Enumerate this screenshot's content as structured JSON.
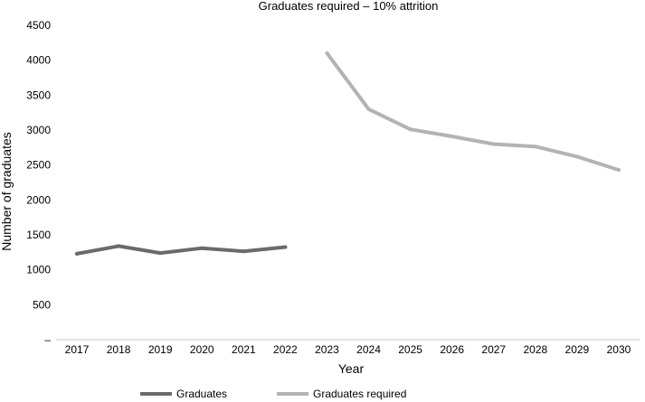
{
  "chart_data": {
    "type": "line",
    "title": "Graduates required – 10% attrition",
    "xlabel": "Year",
    "ylabel": "Number of graduates",
    "categories": [
      "2017",
      "2018",
      "2019",
      "2020",
      "2021",
      "2022",
      "2023",
      "2024",
      "2025",
      "2026",
      "2027",
      "2028",
      "2029",
      "2030"
    ],
    "ylim": [
      0,
      4500
    ],
    "yticks": [
      "–",
      "500",
      "1000",
      "1500",
      "2000",
      "2500",
      "3000",
      "3500",
      "4000",
      "4500"
    ],
    "grid": false,
    "legend_position": "bottom",
    "series": [
      {
        "name": "Graduates",
        "color": "#6b6b6b",
        "values": [
          1230,
          1340,
          1240,
          1310,
          1265,
          1325,
          null,
          null,
          null,
          null,
          null,
          null,
          null,
          null
        ]
      },
      {
        "name": "Graduates required",
        "color": "#b3b3b3",
        "values": [
          null,
          null,
          null,
          null,
          null,
          null,
          4100,
          3300,
          3010,
          2910,
          2800,
          2765,
          2620,
          2430
        ]
      }
    ]
  }
}
